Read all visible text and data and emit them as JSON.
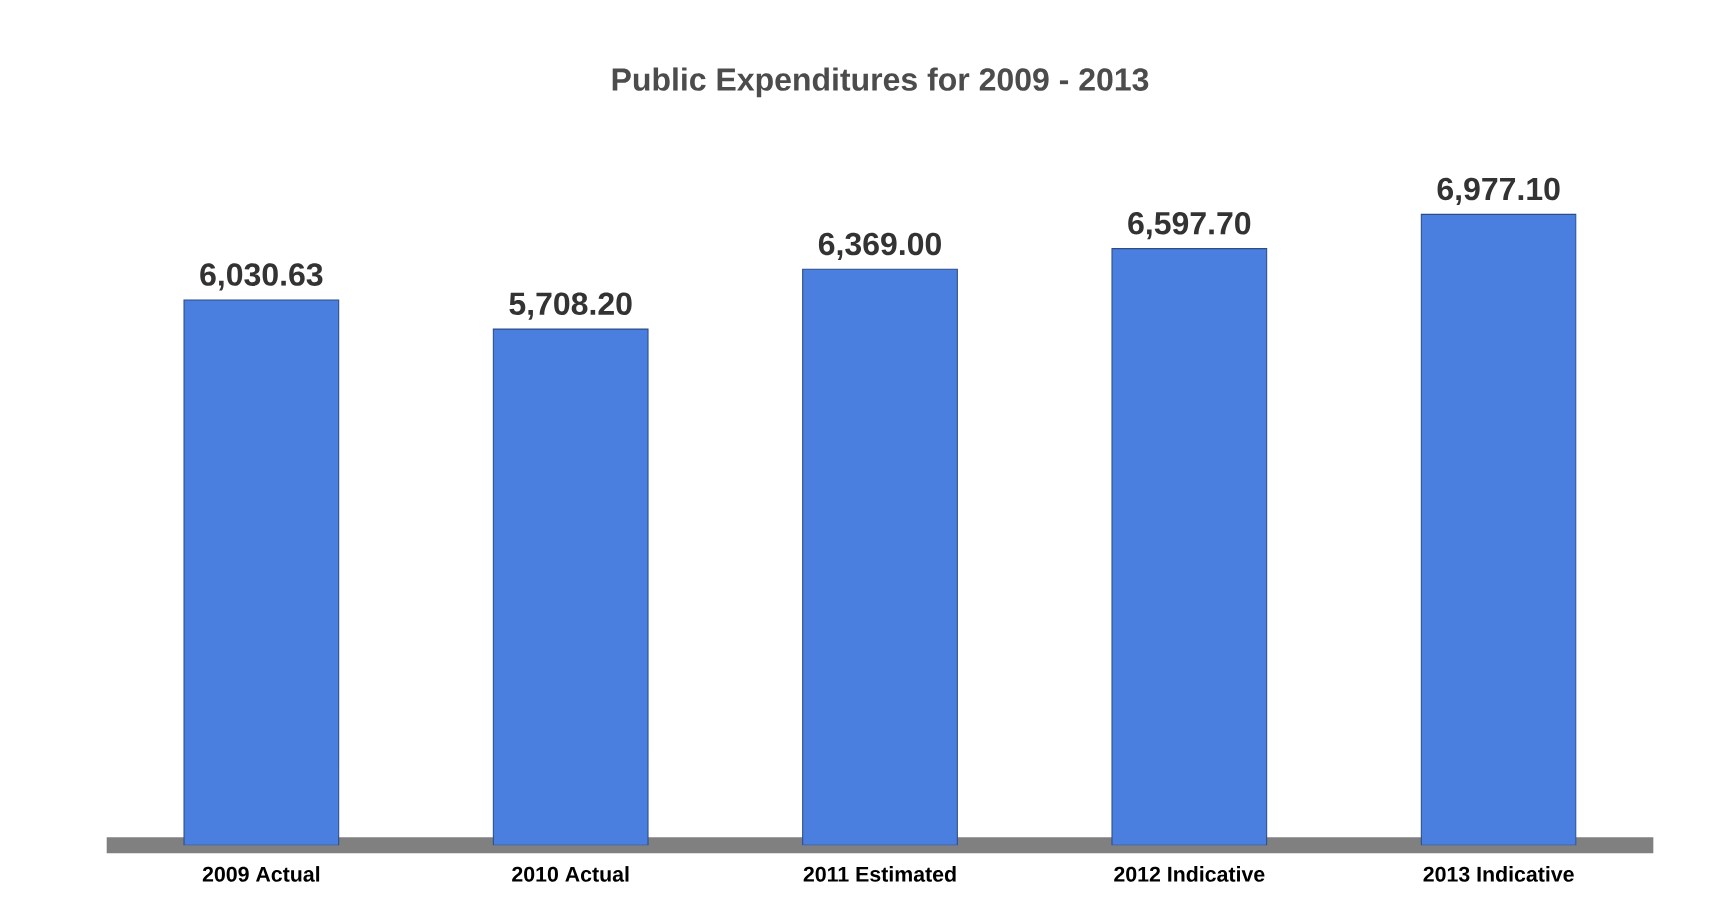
{
  "chart_data": {
    "type": "bar",
    "title": "Public Expenditures for 2009 - 2013",
    "categories": [
      "2009 Actual",
      "2010 Actual",
      "2011 Estimated",
      "2012 Indicative",
      "2013 Indicative"
    ],
    "values": [
      6030.63,
      5708.2,
      6369.0,
      6597.7,
      6977.1
    ],
    "value_labels": [
      "6,030.63",
      "5,708.20",
      "6,369.00",
      "6,597.70",
      "6,977.10"
    ],
    "color": "#4a7fe0"
  }
}
